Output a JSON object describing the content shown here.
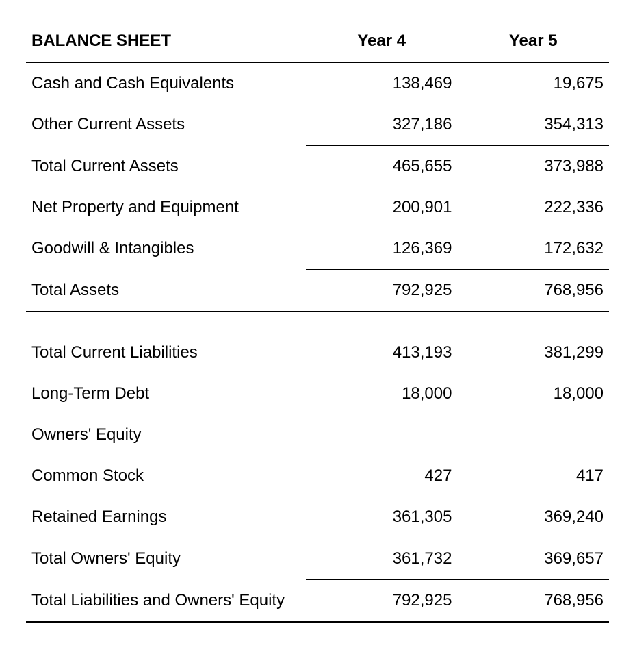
{
  "table": {
    "type": "table",
    "background_color": "#ffffff",
    "text_color": "#000000",
    "border_color": "#000000",
    "header_border_width": 2,
    "section_border_width": 2,
    "subtotal_border_width": 1,
    "fontsize": 24,
    "header_fontweight": 700,
    "body_fontweight": 400,
    "columns": [
      {
        "key": "label",
        "header": "BALANCE SHEET",
        "align": "left"
      },
      {
        "key": "y4",
        "header": "Year 4",
        "align": "right"
      },
      {
        "key": "y5",
        "header": "Year 5",
        "align": "right"
      }
    ],
    "rows": [
      {
        "label": "Cash and Cash Equivalents",
        "y4": "138,469",
        "y5": "19,675"
      },
      {
        "label": "Other Current Assets",
        "y4": "327,186",
        "y5": "354,313"
      },
      {
        "label": "Total Current Assets",
        "y4": "465,655",
        "y5": "373,988"
      },
      {
        "label": "Net Property and Equipment",
        "y4": "200,901",
        "y5": "222,336"
      },
      {
        "label": "Goodwill & Intangibles",
        "y4": "126,369",
        "y5": "172,632"
      },
      {
        "label": "Total Assets",
        "y4": "792,925",
        "y5": "768,956"
      },
      {
        "label": "Total Current Liabilities",
        "y4": "413,193",
        "y5": "381,299"
      },
      {
        "label": "Long-Term Debt",
        "y4": "18,000",
        "y5": "18,000"
      },
      {
        "label": "Owners' Equity",
        "y4": "",
        "y5": ""
      },
      {
        "label": "Common Stock",
        "y4": "427",
        "y5": "417"
      },
      {
        "label": "Retained Earnings",
        "y4": "361,305",
        "y5": "369,240"
      },
      {
        "label": "Total Owners' Equity",
        "y4": "361,732",
        "y5": "369,657"
      },
      {
        "label": "Total Liabilities and Owners' Equity",
        "y4": "792,925",
        "y5": "768,956"
      }
    ]
  }
}
